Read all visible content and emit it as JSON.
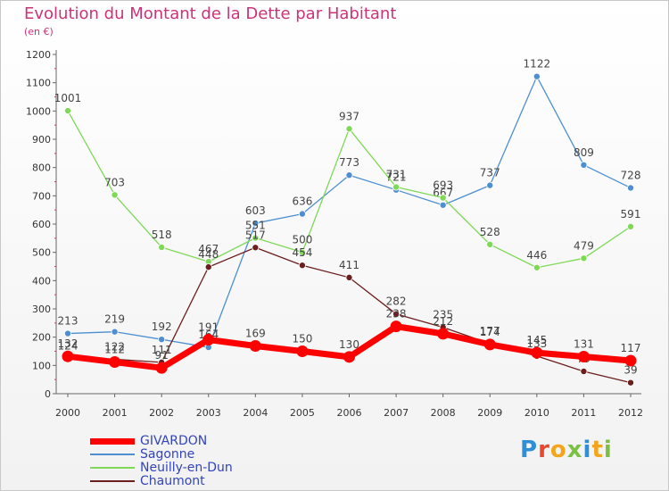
{
  "title": "Evolution du Montant de la Dette par Habitant",
  "subtitle": "(en €)",
  "brand": {
    "text": "Proxiti",
    "letter_colors": [
      "#2f8fd6",
      "#e8482d",
      "#f4a51c",
      "#7cc043",
      "#2f8fd6",
      "#f4a51c",
      "#7cc043"
    ]
  },
  "chart_data": {
    "type": "line",
    "x": [
      "2000",
      "2001",
      "2002",
      "2003",
      "2004",
      "2005",
      "2006",
      "2007",
      "2008",
      "2009",
      "2010",
      "2011",
      "2012"
    ],
    "ylim": [
      0,
      1200
    ],
    "yticks": [
      0,
      100,
      200,
      300,
      400,
      500,
      600,
      700,
      800,
      900,
      1000,
      1100,
      1200
    ],
    "grid": false,
    "legend_position": "bottom-left",
    "series": [
      {
        "name": "GIVARDON",
        "color": "#ff0000",
        "values": [
          132,
          112,
          91,
          191,
          169,
          150,
          130,
          238,
          212,
          174,
          145,
          131,
          117
        ]
      },
      {
        "name": "Sagonne",
        "color": "#4d8fd1",
        "values": [
          213,
          219,
          192,
          164,
          603,
          636,
          773,
          721,
          667,
          737,
          1122,
          809,
          728
        ]
      },
      {
        "name": "Neuilly-en-Dun",
        "color": "#7ed957",
        "values": [
          1001,
          703,
          518,
          467,
          551,
          500,
          937,
          731,
          693,
          528,
          446,
          479,
          591
        ]
      },
      {
        "name": "Chaumont",
        "color": "#6b1e1e",
        "values": [
          124,
          122,
          111,
          448,
          517,
          454,
          411,
          282,
          235,
          177,
          133,
          79,
          39
        ]
      }
    ]
  }
}
